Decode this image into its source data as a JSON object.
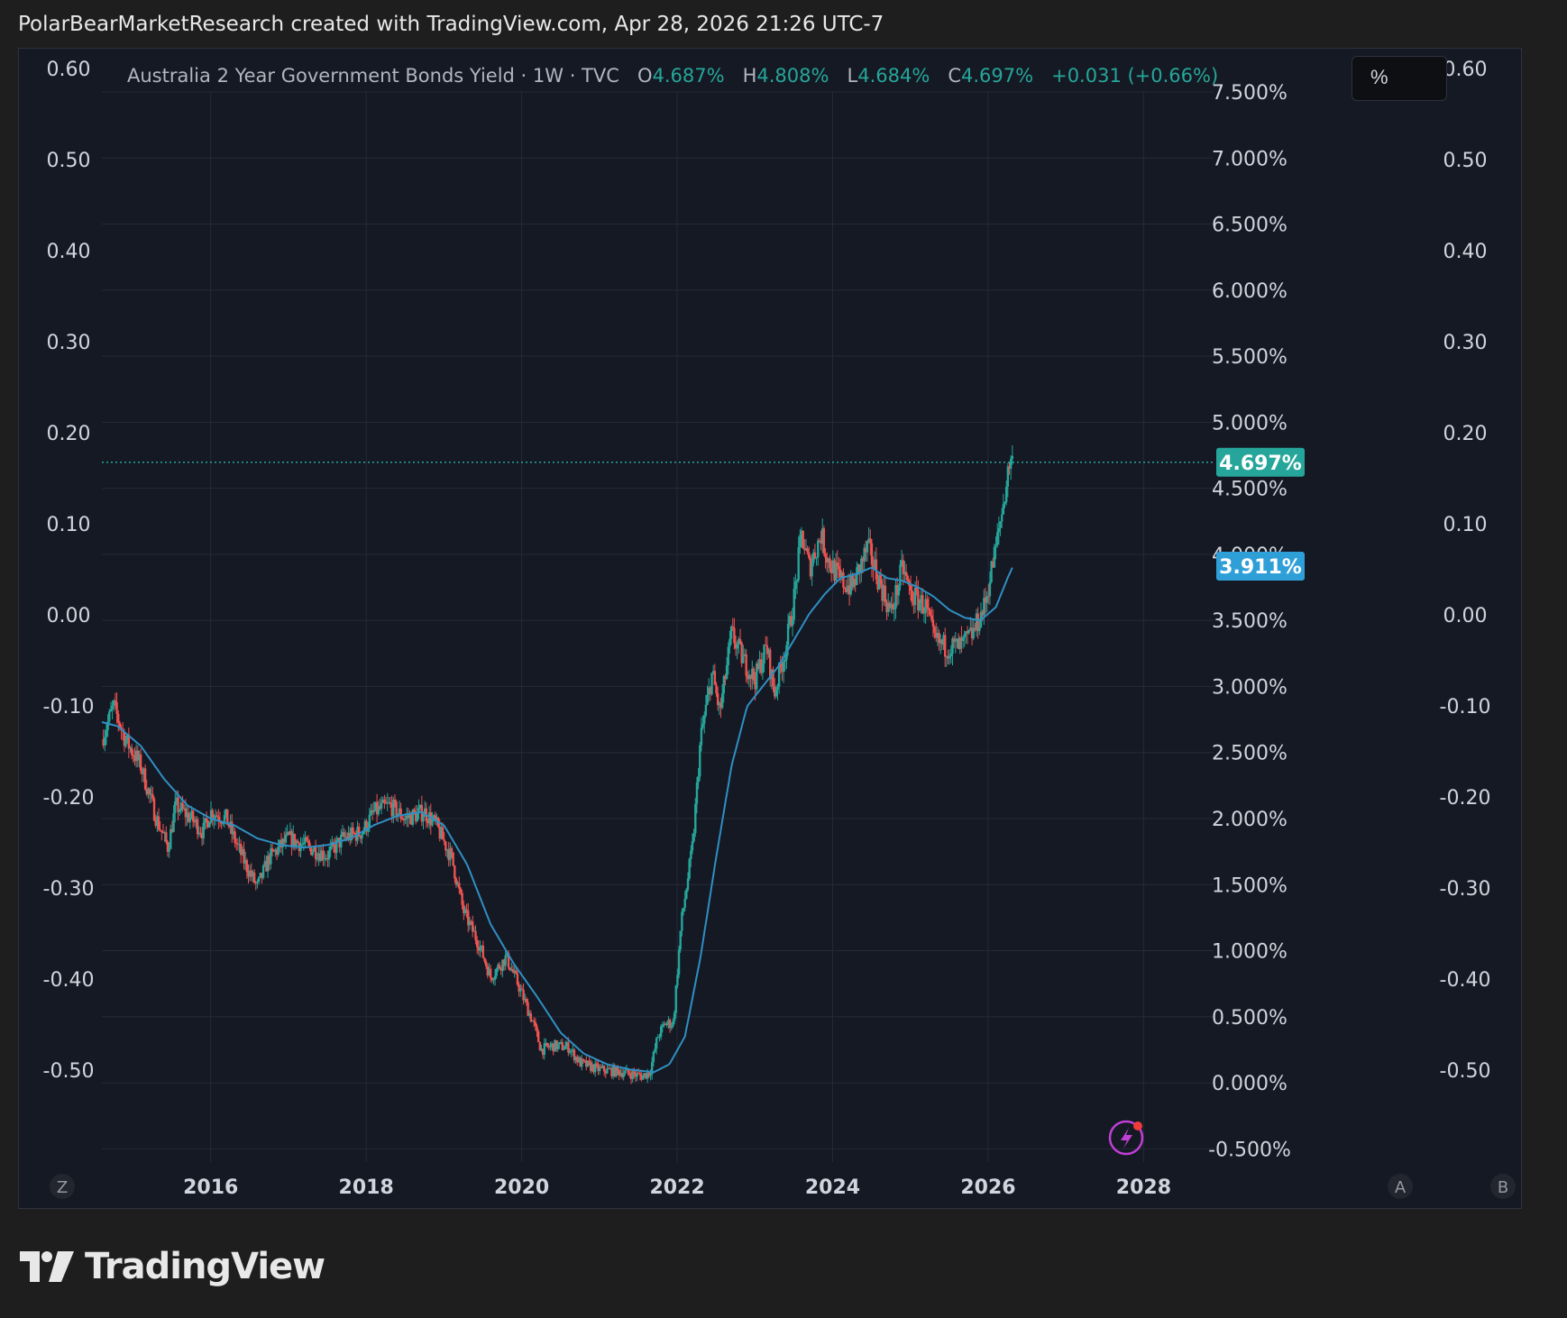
{
  "header": {
    "attribution": "PolarBearMarketResearch created with TradingView.com, Apr 28, 2026 21:26 UTC-7"
  },
  "legend": {
    "symbol": "Australia 2 Year Government Bonds Yield · 1W · TVC",
    "o_label": "O",
    "o_value": "4.687%",
    "h_label": "H",
    "h_value": "4.808%",
    "l_label": "L",
    "l_value": "4.684%",
    "c_label": "C",
    "c_value": "4.697%",
    "change": "+0.031 (+0.66%)"
  },
  "pct_button": {
    "label": "%"
  },
  "footer": {
    "brand": "TradingView"
  },
  "buttons": {
    "z": "Z",
    "a": "A",
    "b": "B"
  },
  "colors": {
    "up": "#26a69a",
    "down": "#ef5350",
    "ma": "#2f8fc2",
    "last_price_badge": "#26a69a",
    "ma_badge": "#2f9fd8"
  },
  "chart_data": {
    "type": "candlestick",
    "title": "Australia 2 Year Government Bonds Yield · 1W · TVC",
    "xlabel": "",
    "ylabel": "",
    "x_ticks": [
      "2016",
      "2018",
      "2020",
      "2022",
      "2024",
      "2026",
      "2028"
    ],
    "x_range": [
      2014.6,
      2028.9
    ],
    "right_axis": {
      "ticks": [
        "7.500%",
        "7.000%",
        "6.500%",
        "6.000%",
        "5.500%",
        "5.000%",
        "4.500%",
        "4.000%",
        "3.500%",
        "3.000%",
        "2.500%",
        "2.000%",
        "1.500%",
        "1.000%",
        "0.500%",
        "0.000%",
        "-0.500%"
      ],
      "range": [
        -0.6,
        7.5
      ]
    },
    "left_axis": {
      "ticks": [
        "0.60",
        "0.50",
        "0.40",
        "0.30",
        "0.20",
        "0.10",
        "0.00",
        "-0.10",
        "-0.20",
        "-0.30",
        "-0.40",
        "-0.50"
      ]
    },
    "last_price": {
      "value": 4.697,
      "label": "4.697%"
    },
    "moving_average_last": {
      "value": 3.911,
      "label": "3.911%"
    },
    "yield_path": [
      [
        2014.6,
        2.6
      ],
      [
        2014.75,
        2.85
      ],
      [
        2014.9,
        2.6
      ],
      [
        2015.1,
        2.4
      ],
      [
        2015.3,
        2.0
      ],
      [
        2015.45,
        1.78
      ],
      [
        2015.55,
        2.1
      ],
      [
        2015.75,
        2.0
      ],
      [
        2015.9,
        1.9
      ],
      [
        2016.0,
        2.05
      ],
      [
        2016.2,
        2.0
      ],
      [
        2016.3,
        1.85
      ],
      [
        2016.45,
        1.65
      ],
      [
        2016.6,
        1.48
      ],
      [
        2016.75,
        1.7
      ],
      [
        2017.0,
        1.85
      ],
      [
        2017.2,
        1.8
      ],
      [
        2017.5,
        1.72
      ],
      [
        2017.7,
        1.85
      ],
      [
        2017.95,
        1.9
      ],
      [
        2018.1,
        2.05
      ],
      [
        2018.3,
        2.1
      ],
      [
        2018.5,
        2.0
      ],
      [
        2018.75,
        2.05
      ],
      [
        2018.9,
        1.95
      ],
      [
        2019.1,
        1.7
      ],
      [
        2019.25,
        1.3
      ],
      [
        2019.45,
        1.05
      ],
      [
        2019.6,
        0.8
      ],
      [
        2019.8,
        0.95
      ],
      [
        2019.95,
        0.75
      ],
      [
        2020.15,
        0.45
      ],
      [
        2020.25,
        0.25
      ],
      [
        2020.4,
        0.28
      ],
      [
        2020.6,
        0.27
      ],
      [
        2020.75,
        0.15
      ],
      [
        2021.0,
        0.1
      ],
      [
        2021.3,
        0.08
      ],
      [
        2021.55,
        0.05
      ],
      [
        2021.65,
        0.08
      ],
      [
        2021.75,
        0.35
      ],
      [
        2021.85,
        0.45
      ],
      [
        2021.95,
        0.45
      ],
      [
        2022.05,
        1.2
      ],
      [
        2022.2,
        1.8
      ],
      [
        2022.3,
        2.6
      ],
      [
        2022.45,
        3.1
      ],
      [
        2022.55,
        2.8
      ],
      [
        2022.7,
        3.4
      ],
      [
        2022.85,
        3.2
      ],
      [
        2023.0,
        3.05
      ],
      [
        2023.15,
        3.3
      ],
      [
        2023.25,
        2.95
      ],
      [
        2023.4,
        3.3
      ],
      [
        2023.5,
        3.65
      ],
      [
        2023.6,
        4.15
      ],
      [
        2023.7,
        3.9
      ],
      [
        2023.85,
        4.15
      ],
      [
        2023.95,
        3.95
      ],
      [
        2024.1,
        3.8
      ],
      [
        2024.25,
        3.75
      ],
      [
        2024.45,
        4.05
      ],
      [
        2024.6,
        3.8
      ],
      [
        2024.75,
        3.55
      ],
      [
        2024.9,
        3.9
      ],
      [
        2025.0,
        3.7
      ],
      [
        2025.2,
        3.6
      ],
      [
        2025.3,
        3.35
      ],
      [
        2025.45,
        3.3
      ],
      [
        2025.65,
        3.3
      ],
      [
        2025.8,
        3.4
      ],
      [
        2025.95,
        3.6
      ],
      [
        2026.1,
        4.05
      ],
      [
        2026.2,
        4.4
      ],
      [
        2026.28,
        4.72
      ],
      [
        2026.32,
        4.697
      ]
    ],
    "moving_average_path": [
      [
        2014.6,
        2.73
      ],
      [
        2014.8,
        2.7
      ],
      [
        2015.1,
        2.55
      ],
      [
        2015.4,
        2.3
      ],
      [
        2015.7,
        2.1
      ],
      [
        2016.0,
        2.0
      ],
      [
        2016.3,
        1.95
      ],
      [
        2016.6,
        1.85
      ],
      [
        2016.9,
        1.8
      ],
      [
        2017.2,
        1.78
      ],
      [
        2017.5,
        1.8
      ],
      [
        2017.8,
        1.85
      ],
      [
        2018.1,
        1.95
      ],
      [
        2018.4,
        2.02
      ],
      [
        2018.7,
        2.05
      ],
      [
        2019.0,
        1.95
      ],
      [
        2019.3,
        1.65
      ],
      [
        2019.6,
        1.2
      ],
      [
        2019.9,
        0.9
      ],
      [
        2020.2,
        0.65
      ],
      [
        2020.5,
        0.38
      ],
      [
        2020.8,
        0.22
      ],
      [
        2021.1,
        0.14
      ],
      [
        2021.4,
        0.1
      ],
      [
        2021.7,
        0.08
      ],
      [
        2021.9,
        0.14
      ],
      [
        2022.1,
        0.35
      ],
      [
        2022.3,
        0.95
      ],
      [
        2022.5,
        1.7
      ],
      [
        2022.7,
        2.4
      ],
      [
        2022.9,
        2.85
      ],
      [
        2023.1,
        3.0
      ],
      [
        2023.3,
        3.15
      ],
      [
        2023.5,
        3.35
      ],
      [
        2023.7,
        3.55
      ],
      [
        2023.9,
        3.7
      ],
      [
        2024.1,
        3.82
      ],
      [
        2024.3,
        3.85
      ],
      [
        2024.5,
        3.9
      ],
      [
        2024.7,
        3.82
      ],
      [
        2024.9,
        3.8
      ],
      [
        2025.1,
        3.75
      ],
      [
        2025.3,
        3.68
      ],
      [
        2025.5,
        3.58
      ],
      [
        2025.7,
        3.52
      ],
      [
        2025.9,
        3.5
      ],
      [
        2026.1,
        3.6
      ],
      [
        2026.25,
        3.82
      ],
      [
        2026.32,
        3.911
      ]
    ]
  }
}
